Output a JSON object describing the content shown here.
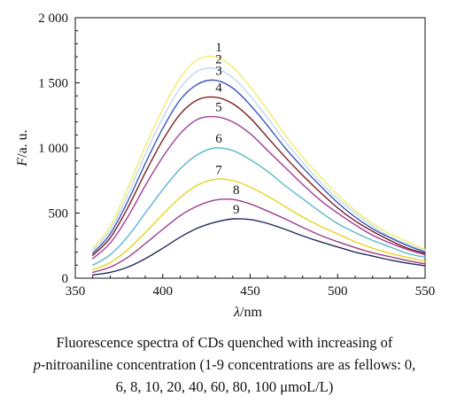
{
  "chart_data": {
    "type": "line",
    "xlabel_symbol": "λ",
    "xlabel_unit": "/nm",
    "ylabel_symbol": "F",
    "ylabel_unit": "/a. u.",
    "xlim": [
      350,
      550
    ],
    "ylim": [
      0,
      2000
    ],
    "x_ticks": [
      350,
      400,
      450,
      500,
      550
    ],
    "y_ticks": [
      0,
      500,
      1000,
      1500,
      2000
    ],
    "x_tick_labels": [
      "350",
      "400",
      "450",
      "500",
      "550"
    ],
    "y_tick_labels": [
      "0",
      "500",
      "1 000",
      "1 500",
      "2 000"
    ],
    "grid": false,
    "x": [
      360,
      370,
      380,
      390,
      400,
      410,
      420,
      430,
      440,
      450,
      460,
      470,
      480,
      490,
      500,
      510,
      520,
      530,
      540,
      550
    ],
    "series": [
      {
        "name": "1",
        "color": "#f2ec6a",
        "values": [
          230,
          400,
          690,
          1010,
          1300,
          1540,
          1680,
          1700,
          1620,
          1470,
          1290,
          1100,
          930,
          780,
          640,
          520,
          420,
          340,
          280,
          220
        ]
      },
      {
        "name": "2",
        "color": "#bcd9ee",
        "values": [
          210,
          370,
          640,
          950,
          1230,
          1460,
          1590,
          1610,
          1540,
          1400,
          1230,
          1050,
          890,
          740,
          610,
          500,
          400,
          320,
          260,
          210
        ]
      },
      {
        "name": "3",
        "color": "#3f56b8",
        "values": [
          190,
          340,
          590,
          880,
          1150,
          1370,
          1490,
          1520,
          1460,
          1330,
          1170,
          1000,
          850,
          710,
          580,
          470,
          380,
          310,
          250,
          200
        ]
      },
      {
        "name": "4",
        "color": "#7a1f1f",
        "values": [
          175,
          310,
          540,
          810,
          1060,
          1260,
          1370,
          1390,
          1340,
          1230,
          1080,
          930,
          790,
          660,
          540,
          440,
          360,
          290,
          230,
          190
        ]
      },
      {
        "name": "5",
        "color": "#a03e9a",
        "values": [
          150,
          270,
          470,
          710,
          930,
          1110,
          1220,
          1240,
          1200,
          1110,
          980,
          850,
          720,
          600,
          500,
          410,
          330,
          270,
          220,
          180
        ]
      },
      {
        "name": "6",
        "color": "#5ab8c8",
        "values": [
          100,
          180,
          320,
          500,
          680,
          840,
          950,
          1000,
          980,
          910,
          820,
          710,
          610,
          510,
          420,
          350,
          290,
          240,
          190,
          160
        ]
      },
      {
        "name": "7",
        "color": "#e6d41e",
        "values": [
          65,
          120,
          220,
          350,
          490,
          620,
          715,
          760,
          750,
          700,
          630,
          550,
          470,
          400,
          340,
          280,
          230,
          190,
          160,
          130
        ]
      },
      {
        "name": "8",
        "color": "#9a3c8a",
        "values": [
          45,
          85,
          160,
          265,
          375,
          480,
          555,
          600,
          605,
          570,
          515,
          455,
          390,
          330,
          280,
          235,
          195,
          165,
          135,
          110
        ]
      },
      {
        "name": "9",
        "color": "#232a5c",
        "values": [
          25,
          45,
          85,
          150,
          230,
          315,
          385,
          430,
          455,
          450,
          420,
          375,
          325,
          280,
          240,
          200,
          170,
          140,
          115,
          95
        ]
      }
    ],
    "annotations": [
      "1",
      "2",
      "3",
      "4",
      "5",
      "6",
      "7",
      "8",
      "9"
    ]
  },
  "caption": {
    "line1": "Fluorescence spectra of CDs quenched with increasing of",
    "line2_italic": "p",
    "line2_rest": "-nitroaniline concentration (1-9 concentrations are as fellows: 0,",
    "line3": "6, 8, 10, 20, 40, 60, 80, 100 μmoL/L)"
  }
}
